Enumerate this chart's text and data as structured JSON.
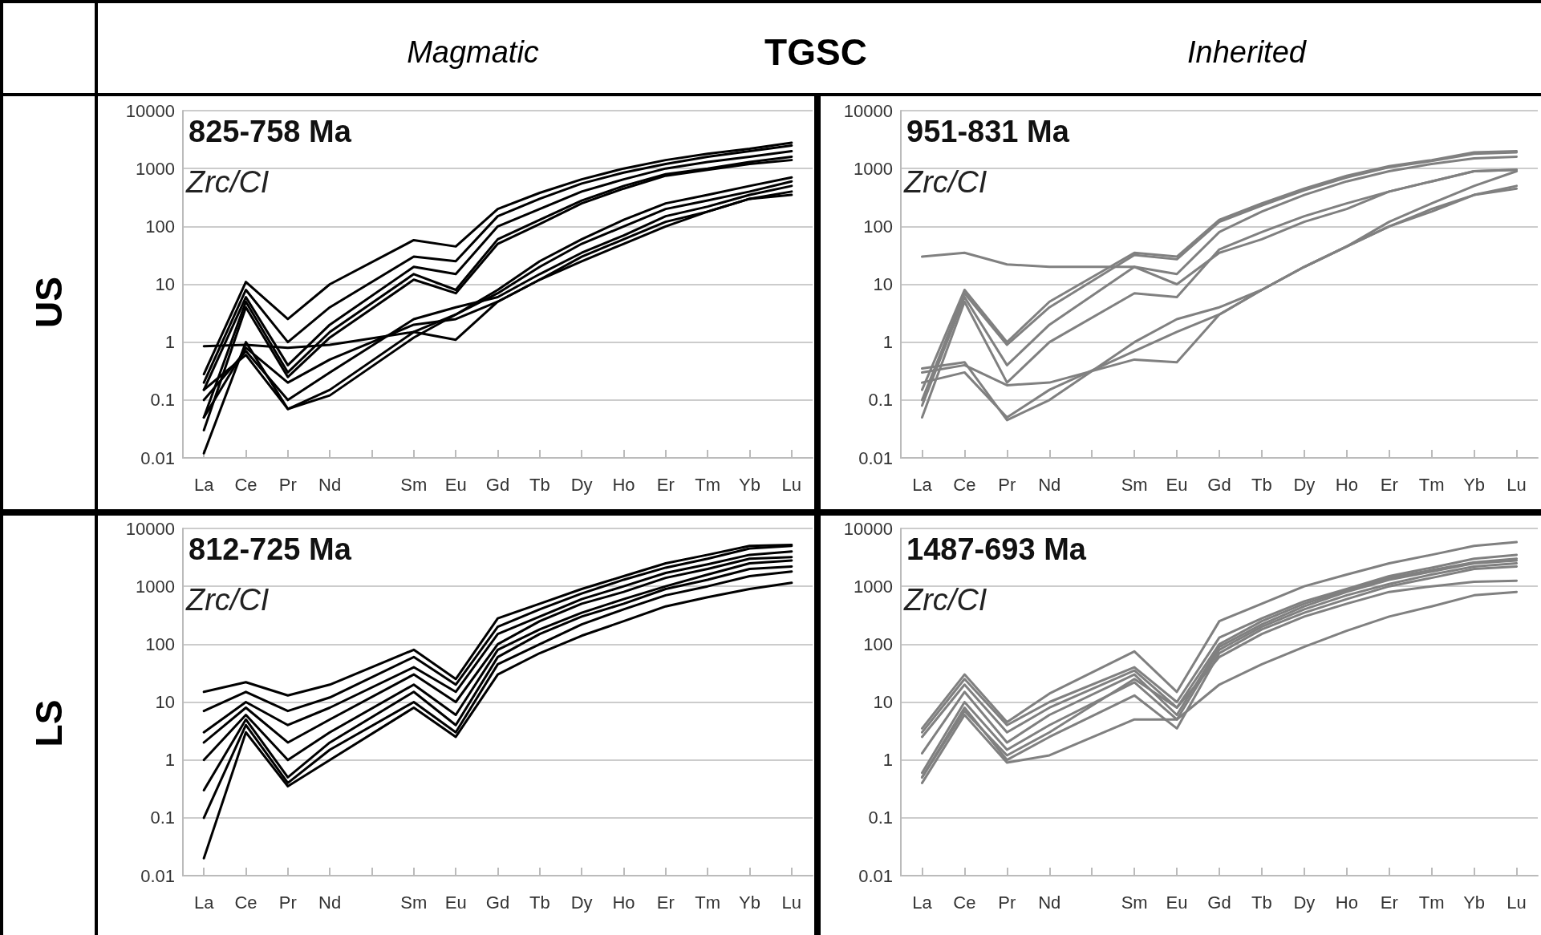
{
  "chart_data": [
    {
      "type": "other",
      "title": "TGSC",
      "annotations": [
        "Magmatic",
        "Inherited",
        "US",
        "LS"
      ]
    },
    {
      "type": "line",
      "title": "825-758 Ma",
      "annotations": [
        "Zrc/CI"
      ],
      "categories": [
        "La",
        "Ce",
        "Pr",
        "Nd",
        null,
        "Sm",
        "Eu",
        "Gd",
        "Tb",
        "Dy",
        "Ho",
        "Er",
        "Tm",
        "Yb",
        "Lu"
      ],
      "log": "y",
      "ylim": [
        0.01,
        10000
      ],
      "yticks": [
        0.01,
        0.1,
        1,
        10,
        100,
        1000,
        10000
      ],
      "grid": "y",
      "marker": "none",
      "line_style": "solid",
      "series": [
        {
          "color": "#000000",
          "values": [
            0.28,
            11,
            2.5,
            10,
            null,
            58,
            45,
            200,
            380,
            650,
            1000,
            1400,
            1800,
            2200,
            2800
          ]
        },
        {
          "color": "#000000",
          "values": [
            0.2,
            8,
            1,
            4,
            null,
            30,
            25,
            150,
            300,
            550,
            850,
            1200,
            1600,
            2000,
            2500
          ]
        },
        {
          "color": "#000000",
          "values": [
            0.15,
            6,
            0.4,
            2,
            null,
            20,
            15,
            100,
            200,
            400,
            650,
            1000,
            1300,
            1600,
            2000
          ]
        },
        {
          "color": "#000000",
          "values": [
            0.05,
            5,
            0.3,
            1.5,
            null,
            15,
            8,
            60,
            130,
            280,
            500,
            800,
            1000,
            1300,
            1600
          ]
        },
        {
          "color": "#000000",
          "values": [
            0.03,
            4,
            0.25,
            1.2,
            null,
            12,
            7,
            50,
            110,
            250,
            450,
            750,
            950,
            1200,
            1400
          ]
        },
        {
          "color": "#000000",
          "values": [
            0.85,
            0.9,
            0.8,
            0.9,
            null,
            1.5,
            1.1,
            5,
            12,
            25,
            50,
            100,
            180,
            300,
            400
          ]
        },
        {
          "color": "#000000",
          "values": [
            0.012,
            1,
            0.07,
            0.12,
            null,
            1.2,
            3,
            8,
            25,
            60,
            130,
            250,
            350,
            500,
            700
          ]
        },
        {
          "color": "#000000",
          "values": [
            0.1,
            0.7,
            0.1,
            0.3,
            null,
            2.5,
            4,
            6,
            15,
            35,
            70,
            150,
            220,
            350,
            500
          ]
        },
        {
          "color": "#000000",
          "values": [
            0.05,
            0.8,
            0.2,
            0.5,
            null,
            2,
            2.5,
            5,
            12,
            30,
            60,
            120,
            180,
            300,
            350
          ]
        },
        {
          "color": "#000000",
          "values": [
            0.15,
            0.6,
            0.07,
            0.15,
            null,
            1.5,
            3,
            7,
            20,
            50,
            100,
            200,
            280,
            400,
            600
          ]
        }
      ]
    },
    {
      "type": "line",
      "title": "951-831 Ma",
      "annotations": [
        "Zrc/CI"
      ],
      "categories": [
        "La",
        "Ce",
        "Pr",
        "Nd",
        null,
        "Sm",
        "Eu",
        "Gd",
        "Tb",
        "Dy",
        "Ho",
        "Er",
        "Tm",
        "Yb",
        "Lu"
      ],
      "log": "y",
      "ylim": [
        0.01,
        10000
      ],
      "yticks": [
        0.01,
        0.1,
        1,
        10,
        100,
        1000,
        10000
      ],
      "grid": "y",
      "marker": "none",
      "line_style": "solid",
      "series": [
        {
          "color": "#808080",
          "values": [
            30,
            35,
            22,
            20,
            null,
            20,
            10,
            35,
            60,
            120,
            200,
            400,
            600,
            900,
            950
          ]
        },
        {
          "color": "#808080",
          "values": [
            0.15,
            8,
            1,
            5,
            null,
            35,
            30,
            130,
            250,
            450,
            750,
            1100,
            1400,
            1900,
            2000
          ]
        },
        {
          "color": "#808080",
          "values": [
            0.1,
            7,
            0.9,
            4,
            null,
            32,
            27,
            120,
            230,
            420,
            700,
            1050,
            1350,
            1800,
            1900
          ]
        },
        {
          "color": "#808080",
          "values": [
            0.08,
            6,
            0.4,
            2,
            null,
            20,
            15,
            80,
            180,
            350,
            600,
            900,
            1200,
            1500,
            1600
          ]
        },
        {
          "color": "#808080",
          "values": [
            0.05,
            5,
            0.2,
            1,
            null,
            7,
            6,
            40,
            80,
            150,
            250,
            400,
            600,
            900,
            950
          ]
        },
        {
          "color": "#808080",
          "values": [
            0.3,
            0.4,
            0.18,
            0.2,
            null,
            0.5,
            0.45,
            3,
            8,
            20,
            45,
            100,
            200,
            350,
            500
          ]
        },
        {
          "color": "#808080",
          "values": [
            0.35,
            0.45,
            0.045,
            0.1,
            null,
            1,
            2.5,
            4,
            8,
            20,
            45,
            120,
            250,
            500,
            900
          ]
        },
        {
          "color": "#808080",
          "values": [
            0.2,
            0.3,
            0.05,
            0.15,
            null,
            0.7,
            1.5,
            3,
            8,
            20,
            45,
            100,
            180,
            350,
            450
          ]
        }
      ]
    },
    {
      "type": "line",
      "title": "812-725 Ma",
      "annotations": [
        "Zrc/CI"
      ],
      "categories": [
        "La",
        "Ce",
        "Pr",
        "Nd",
        null,
        "Sm",
        "Eu",
        "Gd",
        "Tb",
        "Dy",
        "Ho",
        "Er",
        "Tm",
        "Yb",
        "Lu"
      ],
      "log": "y",
      "ylim": [
        0.01,
        10000
      ],
      "yticks": [
        0.01,
        0.1,
        1,
        10,
        100,
        1000,
        10000
      ],
      "grid": "y",
      "marker": "none",
      "line_style": "solid",
      "series": [
        {
          "color": "#000000",
          "values": [
            15,
            22,
            13,
            20,
            null,
            80,
            25,
            280,
            500,
            900,
            1500,
            2500,
            3500,
            5000,
            5200
          ]
        },
        {
          "color": "#000000",
          "values": [
            7,
            15,
            7,
            12,
            null,
            60,
            20,
            200,
            400,
            750,
            1300,
            2100,
            3000,
            4500,
            5000
          ]
        },
        {
          "color": "#000000",
          "values": [
            3,
            10,
            4,
            8,
            null,
            40,
            15,
            150,
            300,
            600,
            1000,
            1700,
            2400,
            3500,
            4000
          ]
        },
        {
          "color": "#000000",
          "values": [
            2,
            8,
            2,
            5,
            null,
            30,
            10,
            100,
            250,
            500,
            800,
            1400,
            2000,
            3000,
            3200
          ]
        },
        {
          "color": "#000000",
          "values": [
            1,
            6,
            1,
            3,
            null,
            20,
            6,
            80,
            180,
            350,
            600,
            1000,
            1600,
            2500,
            2800
          ]
        },
        {
          "color": "#000000",
          "values": [
            0.3,
            5,
            0.5,
            2,
            null,
            15,
            4,
            60,
            150,
            300,
            500,
            900,
            1300,
            2000,
            2200
          ]
        },
        {
          "color": "#000000",
          "values": [
            0.1,
            4,
            0.4,
            1.5,
            null,
            10,
            3,
            45,
            100,
            220,
            400,
            700,
            1000,
            1500,
            1800
          ]
        },
        {
          "color": "#000000",
          "values": [
            0.02,
            3,
            0.35,
            1,
            null,
            8,
            2.5,
            30,
            70,
            140,
            250,
            450,
            650,
            900,
            1150
          ]
        }
      ]
    },
    {
      "type": "line",
      "title": "1487-693 Ma",
      "annotations": [
        "Zrc/CI"
      ],
      "categories": [
        "La",
        "Ce",
        "Pr",
        "Nd",
        null,
        "Sm",
        "Eu",
        "Gd",
        "Tb",
        "Dy",
        "Ho",
        "Er",
        "Tm",
        "Yb",
        "Lu"
      ],
      "log": "y",
      "ylim": [
        0.01,
        10000
      ],
      "yticks": [
        0.01,
        0.1,
        1,
        10,
        100,
        1000,
        10000
      ],
      "grid": "y",
      "marker": "none",
      "line_style": "solid",
      "series": [
        {
          "color": "#808080",
          "values": [
            3.5,
            30,
            4.5,
            14,
            null,
            75,
            15,
            250,
            500,
            1000,
            1600,
            2500,
            3500,
            5000,
            5800
          ]
        },
        {
          "color": "#808080",
          "values": [
            3,
            25,
            4,
            10,
            null,
            40,
            10,
            130,
            280,
            550,
            900,
            1500,
            2100,
            3000,
            3500
          ]
        },
        {
          "color": "#808080",
          "values": [
            2.5,
            20,
            3,
            8,
            null,
            35,
            8,
            100,
            250,
            500,
            850,
            1400,
            1900,
            2600,
            3000
          ]
        },
        {
          "color": "#808080",
          "values": [
            1.3,
            15,
            2,
            6,
            null,
            30,
            6,
            90,
            220,
            450,
            800,
            1300,
            1800,
            2500,
            2800
          ]
        },
        {
          "color": "#808080",
          "values": [
            0.6,
            10,
            1.5,
            4,
            null,
            22,
            5,
            80,
            200,
            400,
            700,
            1100,
            1600,
            2200,
            2500
          ]
        },
        {
          "color": "#808080",
          "values": [
            0.5,
            8,
            1,
            2.5,
            null,
            13,
            3.5,
            70,
            180,
            350,
            600,
            1000,
            1400,
            2000,
            2200
          ]
        },
        {
          "color": "#808080",
          "values": [
            0.4,
            6,
            0.9,
            1.2,
            null,
            5,
            5,
            20,
            45,
            90,
            170,
            300,
            450,
            700,
            800
          ]
        },
        {
          "color": "#808080",
          "values": [
            0.5,
            7,
            1.2,
            3,
            null,
            25,
            8,
            60,
            150,
            300,
            500,
            800,
            1000,
            1200,
            1250
          ]
        }
      ]
    }
  ]
}
